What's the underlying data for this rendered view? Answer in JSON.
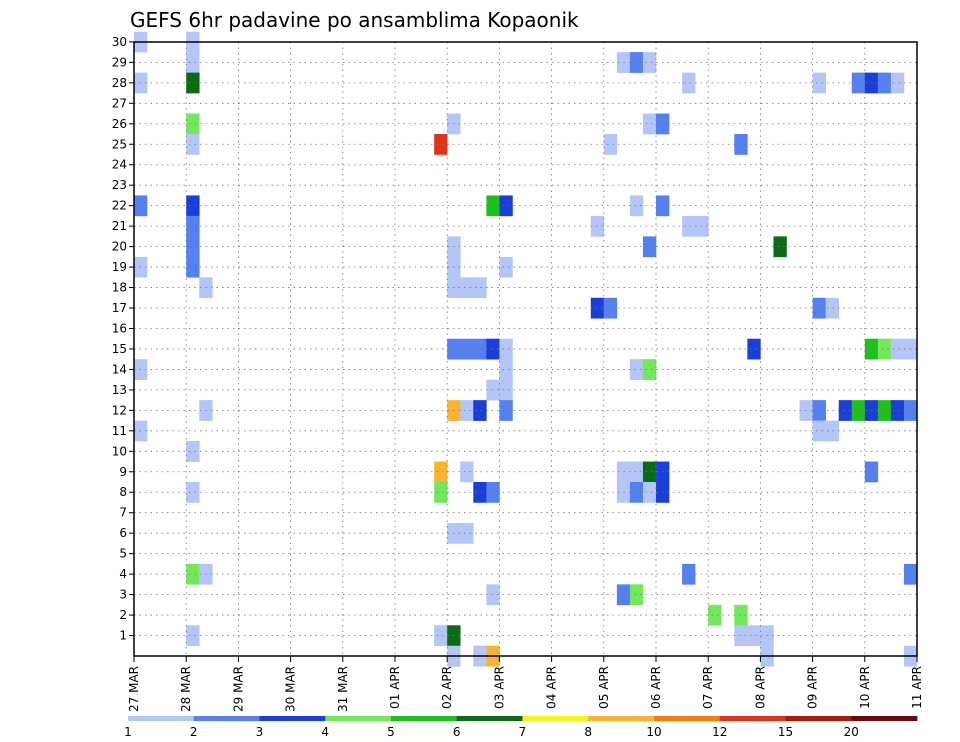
{
  "chart_data": {
    "type": "heatmap",
    "title": "GEFS 6hr padavine po ansamblima Kopaonik",
    "y_ticks": [
      "30",
      "29",
      "28",
      "27",
      "26",
      "25",
      "24",
      "23",
      "22",
      "21",
      "20",
      "19",
      "18",
      "17",
      "16",
      "15",
      "14",
      "13",
      "12",
      "11",
      "10",
      "9",
      "8",
      "7",
      "6",
      "5",
      "4",
      "3",
      "2",
      "1"
    ],
    "x_ticks": [
      "27 MAR",
      "28 MAR",
      "29 MAR",
      "30 MAR",
      "31 MAR",
      "01 APR",
      "02 APR",
      "03 APR",
      "04 APR",
      "05 APR",
      "06 APR",
      "07 APR",
      "08 APR",
      "09 APR",
      "10 APR",
      "11 APR"
    ],
    "grid": "dotted",
    "colorbar": {
      "labels": [
        "1",
        "2",
        "3",
        "4",
        "5",
        "6",
        "7",
        "8",
        "10",
        "12",
        "15",
        "20"
      ],
      "colors": [
        "#b3c6f7",
        "#5580f0",
        "#1a3fd9",
        "#73e85a",
        "#1fbf1f",
        "#0a6b14",
        "#f5f51a",
        "#fab432",
        "#f57b0a",
        "#e0341a",
        "#a81a0a",
        "#6b0a0a"
      ]
    },
    "cells": [
      {
        "x": 0,
        "y": 30,
        "c": 0
      },
      {
        "x": 0,
        "y": 28,
        "c": 0
      },
      {
        "x": 0,
        "y": 22,
        "c": 1
      },
      {
        "x": 0,
        "y": 19,
        "c": 0
      },
      {
        "x": 0,
        "y": 14,
        "c": 0
      },
      {
        "x": 0,
        "y": 11,
        "c": 0
      },
      {
        "x": 4,
        "y": 30,
        "c": 0
      },
      {
        "x": 4,
        "y": 29,
        "c": 0
      },
      {
        "x": 4,
        "y": 28,
        "c": 5
      },
      {
        "x": 4,
        "y": 26,
        "c": 3
      },
      {
        "x": 4,
        "y": 25,
        "c": 0
      },
      {
        "x": 4,
        "y": 22,
        "c": 2
      },
      {
        "x": 4,
        "y": 21,
        "c": 1
      },
      {
        "x": 4,
        "y": 20,
        "c": 1
      },
      {
        "x": 4,
        "y": 19,
        "c": 1
      },
      {
        "x": 4,
        "y": 10,
        "c": 0
      },
      {
        "x": 4,
        "y": 8,
        "c": 0
      },
      {
        "x": 4,
        "y": 4,
        "c": 3
      },
      {
        "x": 4,
        "y": 1,
        "c": 0
      },
      {
        "x": 5,
        "y": 18,
        "c": 0
      },
      {
        "x": 5,
        "y": 12,
        "c": 0
      },
      {
        "x": 5,
        "y": 4,
        "c": 0
      },
      {
        "x": 23,
        "y": 25,
        "c": 9
      },
      {
        "x": 23,
        "y": 9,
        "c": 7
      },
      {
        "x": 23,
        "y": 8,
        "c": 3
      },
      {
        "x": 23,
        "y": 1,
        "c": 0
      },
      {
        "x": 24,
        "y": 26,
        "c": 0
      },
      {
        "x": 24,
        "y": 20,
        "c": 0
      },
      {
        "x": 24,
        "y": 19,
        "c": 0
      },
      {
        "x": 24,
        "y": 18,
        "c": 0
      },
      {
        "x": 24,
        "y": 15,
        "c": 1
      },
      {
        "x": 24,
        "y": 12,
        "c": 7
      },
      {
        "x": 24,
        "y": 6,
        "c": 0
      },
      {
        "x": 24,
        "y": 1,
        "c": 5
      },
      {
        "x": 24,
        "y": 0,
        "c": 0
      },
      {
        "x": 25,
        "y": 18,
        "c": 0
      },
      {
        "x": 25,
        "y": 15,
        "c": 1
      },
      {
        "x": 25,
        "y": 12,
        "c": 0
      },
      {
        "x": 25,
        "y": 9,
        "c": 0
      },
      {
        "x": 25,
        "y": 6,
        "c": 0
      },
      {
        "x": 26,
        "y": 18,
        "c": 0
      },
      {
        "x": 26,
        "y": 15,
        "c": 1
      },
      {
        "x": 26,
        "y": 12,
        "c": 2
      },
      {
        "x": 26,
        "y": 8,
        "c": 2
      },
      {
        "x": 26,
        "y": 0,
        "c": 0
      },
      {
        "x": 27,
        "y": 22,
        "c": 4
      },
      {
        "x": 27,
        "y": 15,
        "c": 2
      },
      {
        "x": 27,
        "y": 13,
        "c": 0
      },
      {
        "x": 27,
        "y": 8,
        "c": 1
      },
      {
        "x": 27,
        "y": 3,
        "c": 0
      },
      {
        "x": 27,
        "y": 0,
        "c": 7
      },
      {
        "x": 28,
        "y": 22,
        "c": 2
      },
      {
        "x": 28,
        "y": 19,
        "c": 0
      },
      {
        "x": 28,
        "y": 15,
        "c": 0
      },
      {
        "x": 28,
        "y": 14,
        "c": 0
      },
      {
        "x": 28,
        "y": 13,
        "c": 0
      },
      {
        "x": 28,
        "y": 12,
        "c": 1
      },
      {
        "x": 35,
        "y": 21,
        "c": 0
      },
      {
        "x": 35,
        "y": 17,
        "c": 2
      },
      {
        "x": 36,
        "y": 25,
        "c": 0
      },
      {
        "x": 36,
        "y": 17,
        "c": 1
      },
      {
        "x": 37,
        "y": 29,
        "c": 0
      },
      {
        "x": 37,
        "y": 9,
        "c": 0
      },
      {
        "x": 37,
        "y": 8,
        "c": 0
      },
      {
        "x": 37,
        "y": 3,
        "c": 1
      },
      {
        "x": 38,
        "y": 29,
        "c": 1
      },
      {
        "x": 38,
        "y": 22,
        "c": 0
      },
      {
        "x": 38,
        "y": 14,
        "c": 0
      },
      {
        "x": 38,
        "y": 9,
        "c": 0
      },
      {
        "x": 38,
        "y": 8,
        "c": 1
      },
      {
        "x": 38,
        "y": 3,
        "c": 3
      },
      {
        "x": 39,
        "y": 29,
        "c": 0
      },
      {
        "x": 39,
        "y": 26,
        "c": 0
      },
      {
        "x": 39,
        "y": 20,
        "c": 1
      },
      {
        "x": 39,
        "y": 14,
        "c": 3
      },
      {
        "x": 39,
        "y": 9,
        "c": 5
      },
      {
        "x": 39,
        "y": 8,
        "c": 0
      },
      {
        "x": 40,
        "y": 26,
        "c": 1
      },
      {
        "x": 40,
        "y": 22,
        "c": 1
      },
      {
        "x": 40,
        "y": 9,
        "c": 2
      },
      {
        "x": 40,
        "y": 8,
        "c": 2
      },
      {
        "x": 42,
        "y": 28,
        "c": 0
      },
      {
        "x": 42,
        "y": 21,
        "c": 0
      },
      {
        "x": 42,
        "y": 4,
        "c": 1
      },
      {
        "x": 43,
        "y": 21,
        "c": 0
      },
      {
        "x": 44,
        "y": 2,
        "c": 3
      },
      {
        "x": 46,
        "y": 25,
        "c": 1
      },
      {
        "x": 46,
        "y": 2,
        "c": 3
      },
      {
        "x": 46,
        "y": 1,
        "c": 0
      },
      {
        "x": 47,
        "y": 15,
        "c": 2
      },
      {
        "x": 47,
        "y": 1,
        "c": 0
      },
      {
        "x": 48,
        "y": 1,
        "c": 0
      },
      {
        "x": 48,
        "y": 0,
        "c": 0
      },
      {
        "x": 49,
        "y": 20,
        "c": 5
      },
      {
        "x": 51,
        "y": 12,
        "c": 0
      },
      {
        "x": 52,
        "y": 28,
        "c": 0
      },
      {
        "x": 52,
        "y": 17,
        "c": 1
      },
      {
        "x": 52,
        "y": 12,
        "c": 1
      },
      {
        "x": 52,
        "y": 11,
        "c": 0
      },
      {
        "x": 53,
        "y": 17,
        "c": 0
      },
      {
        "x": 53,
        "y": 11,
        "c": 0
      },
      {
        "x": 54,
        "y": 12,
        "c": 2
      },
      {
        "x": 55,
        "y": 28,
        "c": 1
      },
      {
        "x": 55,
        "y": 12,
        "c": 4
      },
      {
        "x": 56,
        "y": 28,
        "c": 2
      },
      {
        "x": 56,
        "y": 15,
        "c": 4
      },
      {
        "x": 56,
        "y": 12,
        "c": 2
      },
      {
        "x": 56,
        "y": 9,
        "c": 1
      },
      {
        "x": 57,
        "y": 28,
        "c": 1
      },
      {
        "x": 57,
        "y": 15,
        "c": 3
      },
      {
        "x": 57,
        "y": 12,
        "c": 4
      },
      {
        "x": 58,
        "y": 28,
        "c": 0
      },
      {
        "x": 58,
        "y": 15,
        "c": 0
      },
      {
        "x": 58,
        "y": 12,
        "c": 2
      },
      {
        "x": 59,
        "y": 15,
        "c": 0
      },
      {
        "x": 59,
        "y": 12,
        "c": 1
      },
      {
        "x": 59,
        "y": 4,
        "c": 1
      },
      {
        "x": 59,
        "y": 0,
        "c": 0
      }
    ]
  }
}
